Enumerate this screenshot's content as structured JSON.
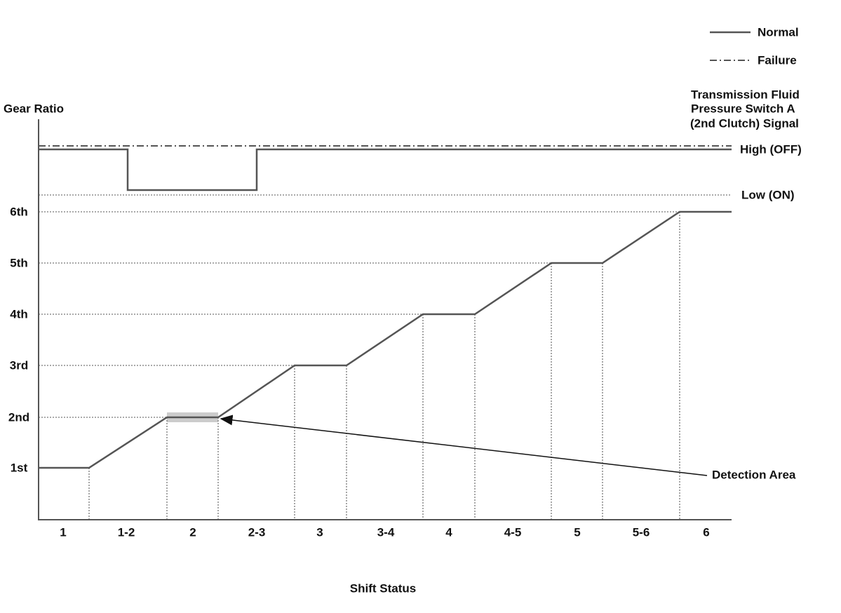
{
  "legend": {
    "normal": "Normal",
    "failure": "Failure"
  },
  "y_axis_label": "Gear Ratio",
  "x_axis_label": "Shift Status",
  "signal_title": [
    "Transmission Fluid",
    "Pressure Switch A",
    "(2nd Clutch) Signal"
  ],
  "signal_levels": {
    "high": "High (OFF)",
    "low": "Low (ON)"
  },
  "gears": [
    "1st",
    "2nd",
    "3rd",
    "4th",
    "5th",
    "6th"
  ],
  "shift_status": [
    "1",
    "1-2",
    "2",
    "2-3",
    "3",
    "3-4",
    "4",
    "4-5",
    "5",
    "5-6",
    "6"
  ],
  "annotation": "Detection Area"
}
